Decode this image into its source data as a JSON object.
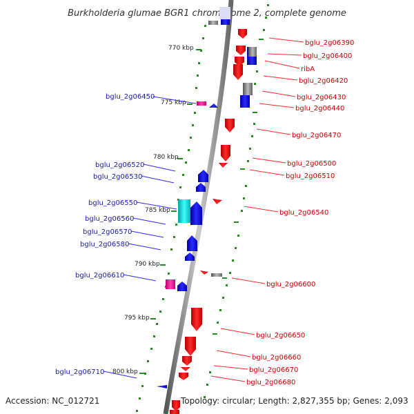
{
  "title": "Burkholderia glumae BGR1 chromosome 2, complete genome",
  "footer": {
    "accession": "Accession: NC_012721",
    "topology": "Topology: circular; Length: 2,827,355 bp; Genes: 2,093"
  },
  "scale_labels": [
    "770 kbp",
    "775 kbp",
    "780 kbp",
    "785 kbp",
    "790 kbp",
    "795 kbp",
    "800 kbp"
  ],
  "right_labels": [
    "bglu_2g06390",
    "bglu_2g06400",
    "ribA",
    "bglu_2g06420",
    "bglu_2g06430",
    "bglu_2g06440",
    "bglu_2g06470",
    "bglu_2g06500",
    "bglu_2g06510",
    "bglu_2g06540",
    "bglu_2g06600",
    "bglu_2g06650",
    "bglu_2g06660",
    "bglu_2g06670",
    "bglu_2g06680"
  ],
  "left_labels": [
    "bglu_2g06450",
    "bglu_2g06520",
    "bglu_2g06530",
    "bglu_2g06550",
    "bglu_2g06560",
    "bglu_2g06570",
    "bglu_2g06580",
    "bglu_2g06610",
    "bglu_2g06710"
  ],
  "colors": {
    "forward_gene": "#ff0000",
    "reverse_gene": "#0000ff",
    "rna_cyan": "#00e5e5",
    "pink": "#ff1493",
    "gray": "#808080",
    "backbone": "#888888",
    "tick": "#228b22",
    "label_right": "#cc0000",
    "label_left": "#1a1aa6"
  }
}
